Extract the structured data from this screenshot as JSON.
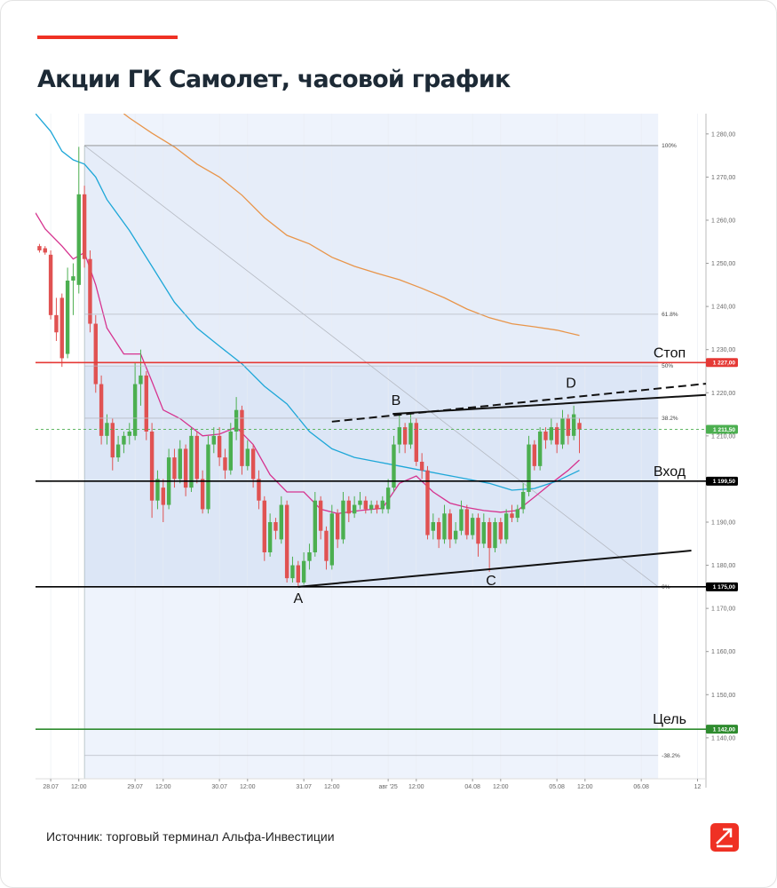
{
  "chart_data": {
    "type": "candlestick",
    "title": "Акции ГК Самолет, часовой график",
    "source": "Источник: торговый терминал Альфа-Инвестиции",
    "xlim": [
      -2.7,
      116.5
    ],
    "ylim": [
      1130.5,
      1284.7
    ],
    "xticks": [
      {
        "value": 0,
        "label": "28.07"
      },
      {
        "value": 5,
        "label": "12:00"
      },
      {
        "value": 15,
        "label": "29.07"
      },
      {
        "value": 20,
        "label": "12:00"
      },
      {
        "value": 30,
        "label": "30.07"
      },
      {
        "value": 35,
        "label": "12:00"
      },
      {
        "value": 45,
        "label": "31.07"
      },
      {
        "value": 50,
        "label": "12:00"
      },
      {
        "value": 60,
        "label": "авг '25"
      },
      {
        "value": 65,
        "label": "12:00"
      },
      {
        "value": 75,
        "label": "04.08"
      },
      {
        "value": 80,
        "label": "12:00"
      },
      {
        "value": 90,
        "label": "05.08"
      },
      {
        "value": 95,
        "label": "12:00"
      },
      {
        "value": 105,
        "label": "06.08"
      },
      {
        "value": 115,
        "label": "12"
      }
    ],
    "yticks": [
      {
        "value": 1280,
        "label": "1 280,00"
      },
      {
        "value": 1270,
        "label": "1 270,00"
      },
      {
        "value": 1260,
        "label": "1 260,00"
      },
      {
        "value": 1250,
        "label": "1 250,00"
      },
      {
        "value": 1240,
        "label": "1 240,00"
      },
      {
        "value": 1230,
        "label": "1 230,00"
      },
      {
        "value": 1220,
        "label": "1 220,00"
      },
      {
        "value": 1210,
        "label": "1 210,00"
      },
      {
        "value": 1200,
        "label": "1 200,00"
      },
      {
        "value": 1190,
        "label": "1 190,00"
      },
      {
        "value": 1180,
        "label": "1 180,00"
      },
      {
        "value": 1170,
        "label": "1 170,00"
      },
      {
        "value": 1160,
        "label": "1 160,00"
      },
      {
        "value": 1150,
        "label": "1 150,00"
      },
      {
        "value": 1140,
        "label": "1 140,00"
      }
    ],
    "up_color": "#4caf50",
    "down_color": "#e05252",
    "x": [
      -2,
      -1,
      0,
      1,
      2,
      3,
      4,
      5,
      6,
      7,
      8,
      9,
      10,
      11,
      12,
      13,
      14,
      15,
      16,
      17,
      18,
      19,
      20,
      21,
      22,
      23,
      24,
      25,
      26,
      27,
      28,
      29,
      30,
      31,
      32,
      33,
      34,
      35,
      36,
      37,
      38,
      39,
      40,
      41,
      42,
      43,
      44,
      45,
      46,
      47,
      48,
      49,
      50,
      51,
      52,
      53,
      54,
      55,
      56,
      57,
      58,
      59,
      60,
      61,
      62,
      63,
      64,
      65,
      66,
      67,
      68,
      69,
      70,
      71,
      72,
      73,
      74,
      75,
      76,
      77,
      78,
      79,
      80,
      81,
      82,
      83,
      84,
      85,
      86,
      87,
      88,
      89,
      90,
      91,
      92,
      93,
      94
    ],
    "open": [
      1254,
      1253.5,
      1252,
      1238,
      1242,
      1229,
      1246,
      1245,
      1266,
      1251,
      1236,
      1222,
      1210,
      1213,
      1205,
      1208,
      1210,
      1210,
      1222,
      1224,
      1211,
      1195,
      1198,
      1194,
      1205,
      1200,
      1207,
      1198,
      1210,
      1200,
      1193,
      1208,
      1210,
      1205,
      1202,
      1211,
      1216,
      1203,
      1207,
      1200,
      1195,
      1183,
      1190,
      1186,
      1194,
      1177,
      1180,
      1176,
      1181,
      1183,
      1195,
      1188,
      1180,
      1192,
      1186,
      1195,
      1192,
      1194,
      1195,
      1193,
      1194,
      1193,
      1193,
      1198,
      1208,
      1212,
      1208,
      1213,
      1204,
      1202,
      1188,
      1190,
      1186,
      1192,
      1186,
      1188,
      1193,
      1187,
      1191,
      1185,
      1190,
      1184,
      1190,
      1186,
      1192,
      1191,
      1193,
      1197,
      1208,
      1203,
      1211,
      1209,
      1212,
      1208,
      1214,
      1210,
      1213
    ],
    "high": [
      1254.5,
      1254,
      1253,
      1242,
      1243,
      1249,
      1250,
      1277,
      1268,
      1253,
      1238,
      1224,
      1215,
      1214,
      1210,
      1211,
      1213,
      1227,
      1230,
      1225,
      1213,
      1202,
      1200,
      1207,
      1207,
      1209,
      1208,
      1212,
      1211,
      1202,
      1210,
      1212,
      1212,
      1207,
      1213,
      1219,
      1217,
      1209,
      1208,
      1202,
      1196,
      1192,
      1191,
      1196,
      1195,
      1182,
      1181,
      1183,
      1185,
      1197,
      1196,
      1189,
      1194,
      1193,
      1197,
      1196,
      1196,
      1197,
      1196,
      1195,
      1195,
      1196,
      1200,
      1210,
      1215,
      1213,
      1215,
      1214,
      1206,
      1203,
      1192,
      1191,
      1194,
      1193,
      1190,
      1195,
      1194,
      1192,
      1192,
      1192,
      1191,
      1191,
      1191,
      1193,
      1194,
      1194,
      1199,
      1210,
      1209,
      1212,
      1212,
      1214,
      1213,
      1216,
      1215,
      1217,
      1214
    ],
    "low": [
      1252.5,
      1252,
      1237,
      1232,
      1226,
      1228,
      1238,
      1243,
      1249,
      1234,
      1220,
      1208,
      1208,
      1202,
      1204,
      1206,
      1208,
      1209,
      1217,
      1209,
      1191,
      1193,
      1190,
      1193,
      1198,
      1199,
      1196,
      1197,
      1199,
      1192,
      1192,
      1206,
      1203,
      1200,
      1201,
      1209,
      1201,
      1202,
      1198,
      1193,
      1181,
      1182,
      1186,
      1185,
      1176,
      1176,
      1175,
      1175.5,
      1179,
      1182,
      1186,
      1179,
      1179,
      1184,
      1185,
      1190,
      1191,
      1193,
      1192,
      1192,
      1192,
      1192,
      1192,
      1197,
      1206,
      1206,
      1207,
      1203,
      1200,
      1186,
      1186,
      1184,
      1185,
      1184,
      1185,
      1187,
      1186,
      1186,
      1182,
      1184,
      1178.5,
      1183,
      1185,
      1185,
      1190,
      1190,
      1192,
      1196,
      1202,
      1202,
      1207,
      1208,
      1206,
      1207,
      1208,
      1209,
      1206
    ],
    "close": [
      1253,
      1252.5,
      1238,
      1234,
      1228,
      1246,
      1247,
      1266,
      1251,
      1236,
      1222,
      1210,
      1213,
      1205,
      1208,
      1210,
      1211,
      1222,
      1224,
      1211,
      1195,
      1200,
      1194,
      1205,
      1200,
      1207,
      1198,
      1210,
      1200,
      1193,
      1208,
      1210,
      1205,
      1202,
      1211,
      1216,
      1203,
      1207,
      1200,
      1195,
      1183,
      1190,
      1188,
      1194,
      1177,
      1180,
      1176,
      1181,
      1183,
      1195,
      1188,
      1181,
      1192,
      1186,
      1195,
      1192,
      1194,
      1195,
      1193,
      1194,
      1193,
      1195,
      1198,
      1208,
      1212,
      1208,
      1213,
      1204,
      1202,
      1187,
      1190,
      1186,
      1192,
      1186,
      1188,
      1193,
      1187,
      1191,
      1185,
      1190,
      1184,
      1190,
      1186,
      1192,
      1191,
      1193,
      1197,
      1208,
      1203,
      1211,
      1209,
      1212,
      1208,
      1214,
      1210,
      1215,
      1211.5
    ],
    "indicators": [
      {
        "color": "#d6338f",
        "x": [
          -2.7,
          -1,
          2,
          4,
          6,
          8,
          10,
          13,
          16,
          18,
          20,
          23,
          27,
          30,
          33,
          36,
          39,
          42,
          45,
          48,
          51,
          55,
          59,
          62,
          65,
          68,
          71,
          74,
          77,
          80,
          83,
          86,
          89,
          92,
          94
        ],
        "values": [
          1261.7,
          1258,
          1254,
          1251,
          1252.5,
          1245,
          1235,
          1229,
          1229,
          1222.6,
          1216,
          1214,
          1210,
          1210.4,
          1212,
          1208,
          1201,
          1197,
          1197,
          1193,
          1192,
          1192.7,
          1193.2,
          1199,
          1200.7,
          1197,
          1194.4,
          1193.4,
          1192.7,
          1192.3,
          1192.7,
          1195.8,
          1199,
          1202,
          1204.4
        ]
      },
      {
        "color": "#1ea7d8",
        "x": [
          -2.7,
          0,
          2,
          4,
          6,
          8,
          10,
          14,
          18,
          22,
          26,
          30,
          34,
          38,
          42,
          46,
          50,
          54,
          58,
          62,
          66,
          70,
          74,
          78,
          82,
          86,
          90,
          94
        ],
        "values": [
          1284.7,
          1280.6,
          1276,
          1274,
          1273,
          1270,
          1264.8,
          1257.6,
          1249.3,
          1241,
          1235,
          1230.8,
          1226.7,
          1221.5,
          1217.4,
          1211,
          1207,
          1205,
          1204,
          1203,
          1202,
          1201,
          1200,
          1199,
          1197.4,
          1197.8,
          1199.5,
          1202
        ]
      },
      {
        "color": "#e8954a",
        "x": [
          13,
          14,
          18,
          22,
          26,
          30,
          34,
          38,
          42,
          46,
          50,
          54,
          58,
          62,
          66,
          70,
          74,
          78,
          82,
          86,
          90,
          94
        ],
        "values": [
          1284.7,
          1283.7,
          1280.2,
          1277,
          1273,
          1270,
          1265.8,
          1260.6,
          1256.5,
          1254.5,
          1251.4,
          1249.3,
          1247.7,
          1246.2,
          1244.2,
          1242,
          1239.4,
          1237.4,
          1236,
          1235.3,
          1234.5,
          1233.3
        ]
      }
    ],
    "fibonacci": {
      "x": [
        6,
        108
      ],
      "levels": [
        {
          "value": 1277.3,
          "label": "100%"
        },
        {
          "value": 1238.2,
          "label": "61.8%"
        },
        {
          "value": 1226.2,
          "label": "50%"
        },
        {
          "value": 1214.1,
          "label": "38.2%"
        },
        {
          "value": 1175,
          "label": "0%"
        },
        {
          "value": 1135.9,
          "label": "-38.2%"
        }
      ]
    },
    "trendlines": [
      {
        "style": "dashed",
        "x": [
          50,
          116.5
        ],
        "y": [
          1213.3,
          1222.1
        ]
      },
      {
        "style": "solid",
        "x": [
          60.8,
          116.5
        ],
        "y": [
          1215.1,
          1219.5
        ]
      },
      {
        "style": "solid",
        "x": [
          44,
          113.9
        ],
        "y": [
          1175,
          1183.4
        ]
      }
    ],
    "levels": [
      {
        "label": "Стоп",
        "value": 1227,
        "value_label": "1 227,00",
        "color": "#e53935"
      },
      {
        "label": "Вход",
        "value": 1199.5,
        "value_label": "1 199,50",
        "color": "#000000"
      },
      {
        "value": 1175,
        "value_label": "1 175,00",
        "color": "#000000"
      },
      {
        "label": "Цель",
        "value": 1142,
        "value_label": "1 142,00",
        "color": "#2e8b2e"
      }
    ],
    "last_price": {
      "value": 1211.5,
      "value_label": "1 211,50",
      "color": "#4caf50"
    },
    "points": [
      {
        "label": "A",
        "x": 44,
        "y": 1175
      },
      {
        "label": "B",
        "x": 61.4,
        "y": 1215.5
      },
      {
        "label": "C",
        "x": 78.3,
        "y": 1178.5
      },
      {
        "label": "D",
        "x": 92.5,
        "y": 1219.5
      }
    ]
  }
}
